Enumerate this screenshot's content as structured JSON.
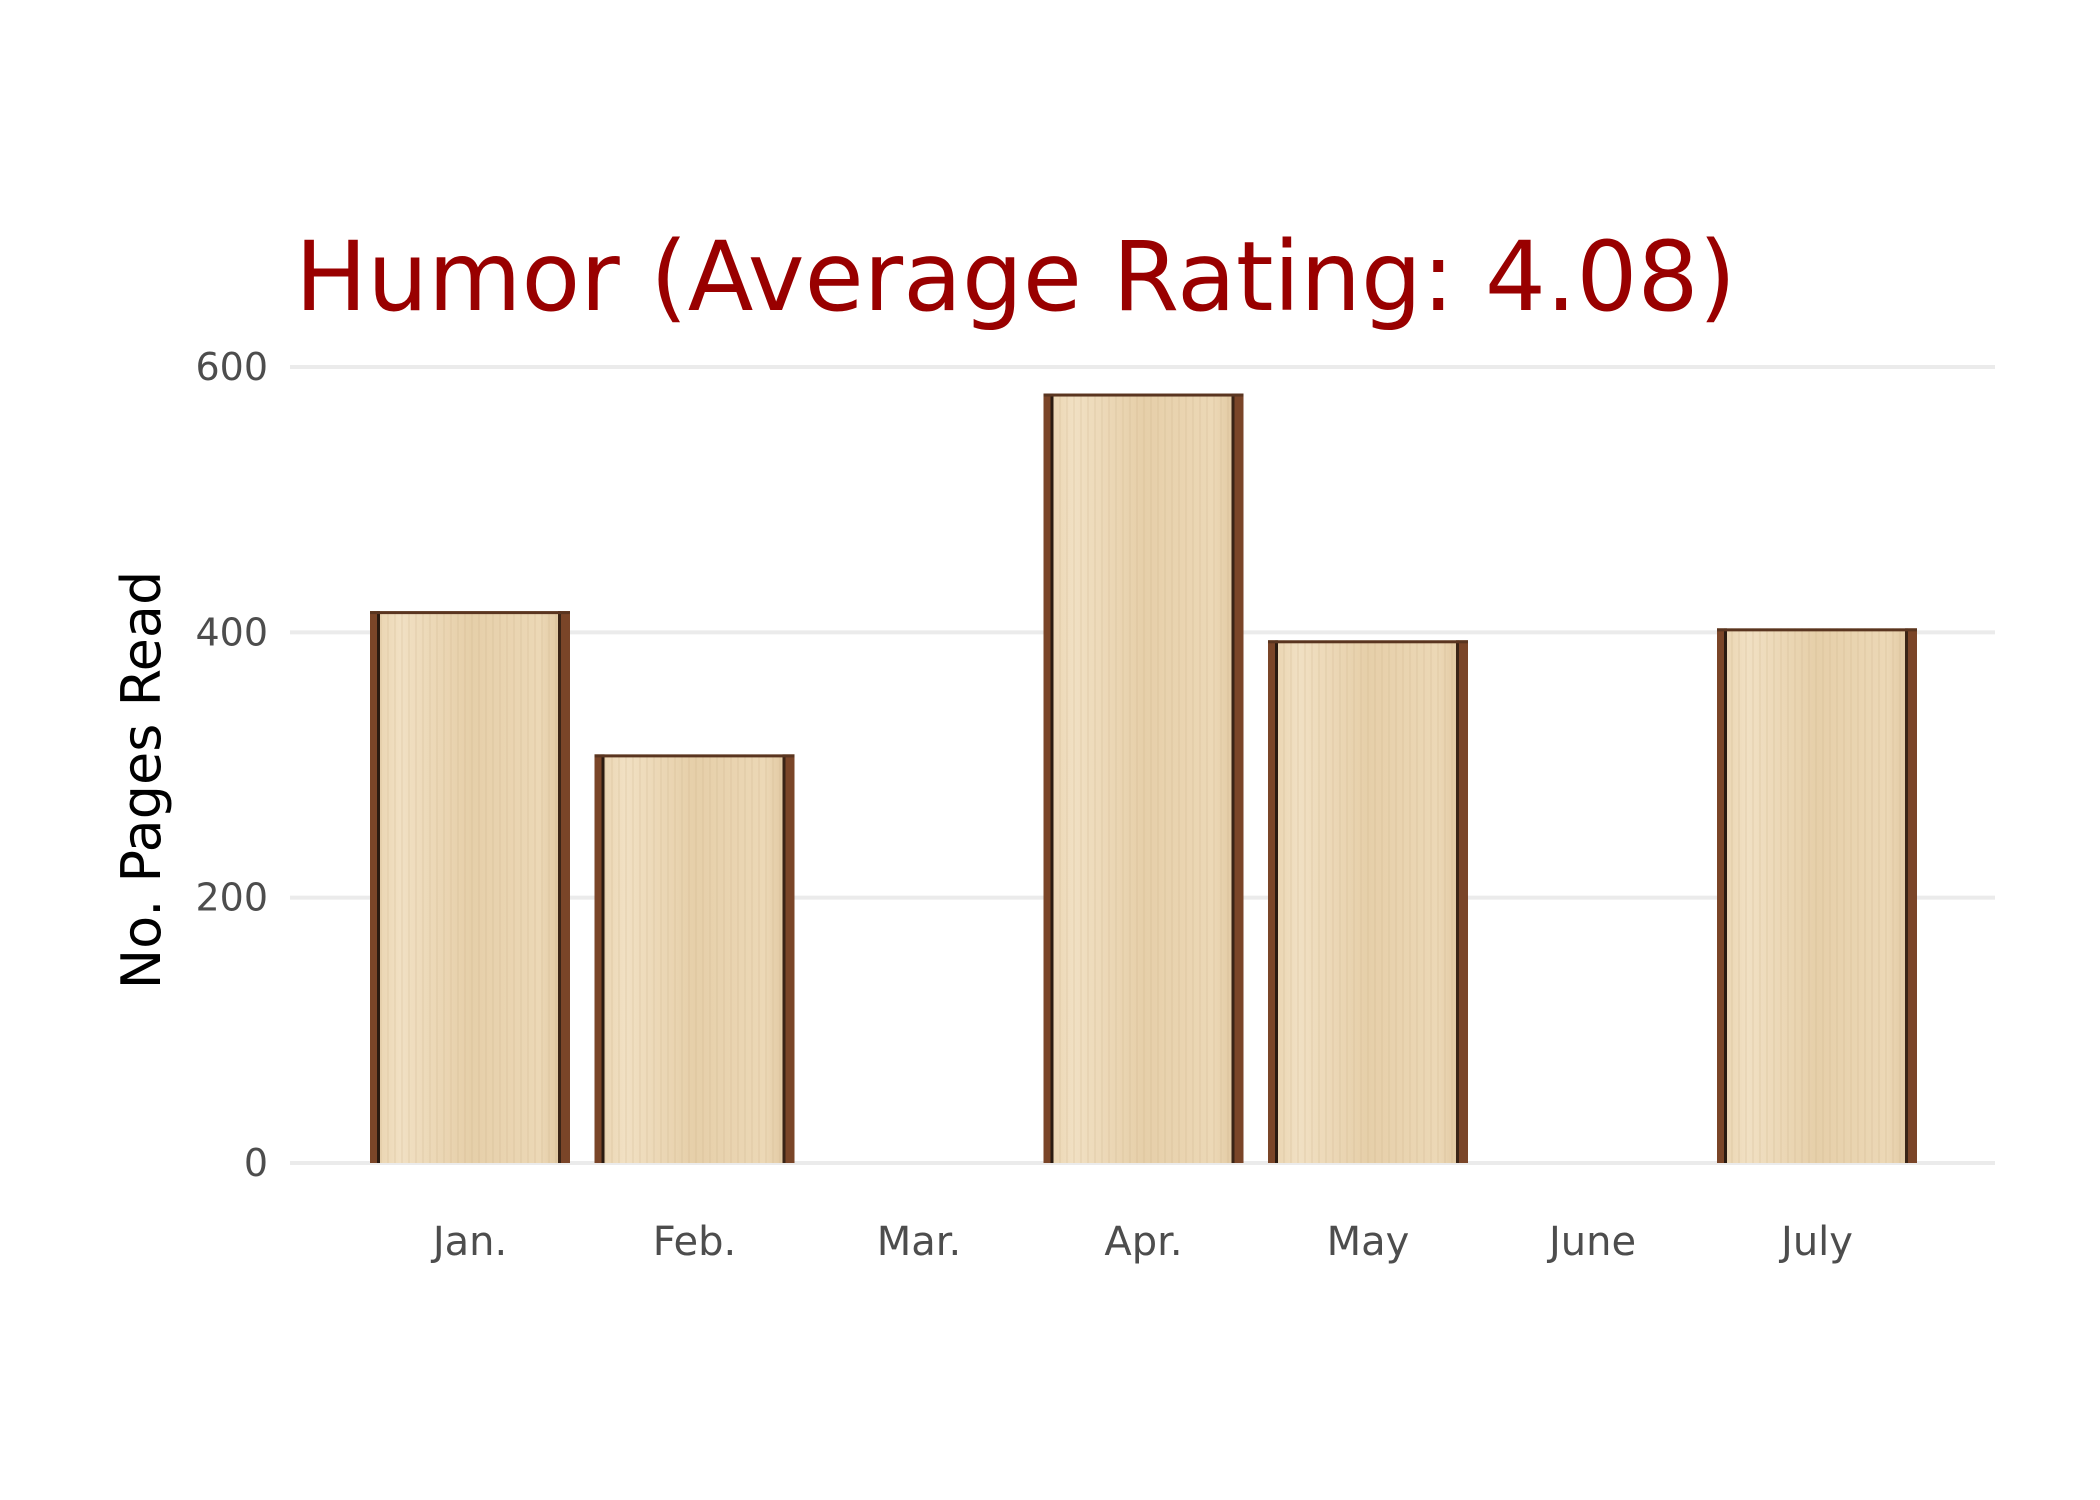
{
  "chart_data": {
    "type": "bar",
    "title": "Humor (Average Rating: 4.08)",
    "xlabel": "",
    "ylabel": "No. Pages Read",
    "categories": [
      "Jan.",
      "Feb.",
      "Mar.",
      "Apr.",
      "May",
      "June",
      "July"
    ],
    "values": [
      416,
      308,
      0,
      580,
      394,
      0,
      403
    ],
    "ylim": [
      0,
      600
    ],
    "yticks": [
      "0",
      "200",
      "400",
      "600"
    ],
    "grid": true,
    "legend": "none"
  },
  "colors": {
    "title": "#990000",
    "page_light": "#efdcbc",
    "page_mid": "#e3c9a3",
    "cover": "#7a4528"
  }
}
